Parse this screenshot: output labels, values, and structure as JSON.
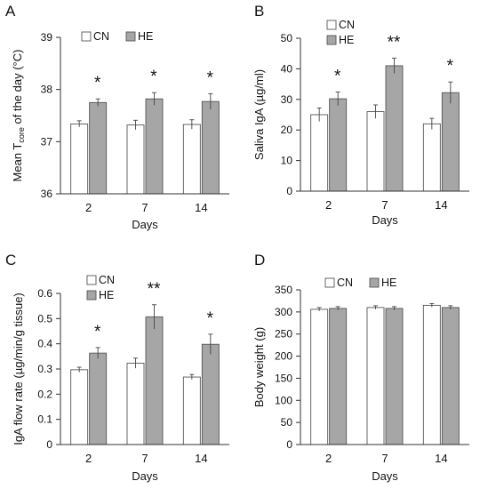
{
  "legend": [
    "CN",
    "HE"
  ],
  "colors": {
    "CN": "#ffffff",
    "HE": "#a6a6a6",
    "stroke": "#555555",
    "axis": "#333333"
  },
  "chart_data": [
    {
      "panel": "A",
      "type": "bar",
      "categories": [
        "2",
        "7",
        "14"
      ],
      "xlabel": "Days",
      "ylabel_parts": [
        "Mean T",
        "core",
        " of the day (°C)"
      ],
      "ylim": [
        36,
        39
      ],
      "yticks": [
        "36",
        "37",
        "38",
        "39"
      ],
      "series": [
        {
          "name": "CN",
          "values": [
            37.34,
            37.32,
            37.33
          ],
          "errors": [
            0.06,
            0.09,
            0.09
          ]
        },
        {
          "name": "HE",
          "values": [
            37.75,
            37.82,
            37.77
          ],
          "errors": [
            0.07,
            0.12,
            0.15
          ]
        }
      ],
      "significance": [
        "*",
        "*",
        "*"
      ]
    },
    {
      "panel": "B",
      "type": "bar",
      "categories": [
        "2",
        "7",
        "14"
      ],
      "xlabel": "Days",
      "ylabel": "Saliva IgA (µg/ml)",
      "ylim": [
        0,
        50
      ],
      "yticks": [
        "0",
        "10",
        "20",
        "30",
        "40",
        "50"
      ],
      "series": [
        {
          "name": "CN",
          "values": [
            25,
            26,
            22
          ],
          "errors": [
            2.2,
            2.2,
            1.8
          ]
        },
        {
          "name": "HE",
          "values": [
            30.2,
            41,
            32.2
          ],
          "errors": [
            2.2,
            2.5,
            3.5
          ]
        }
      ],
      "significance": [
        "*",
        "**",
        "*"
      ]
    },
    {
      "panel": "C",
      "type": "bar",
      "categories": [
        "2",
        "7",
        "14"
      ],
      "xlabel": "Days",
      "ylabel": "IgA flow rate (µg/min/g tissue)",
      "ylim": [
        0,
        0.6
      ],
      "yticks": [
        "0",
        "0.1",
        "0.2",
        "0.3",
        "0.4",
        "0.5",
        "0.6"
      ],
      "series": [
        {
          "name": "CN",
          "values": [
            0.297,
            0.323,
            0.268
          ],
          "errors": [
            0.01,
            0.02,
            0.01
          ]
        },
        {
          "name": "HE",
          "values": [
            0.363,
            0.507,
            0.398
          ],
          "errors": [
            0.022,
            0.048,
            0.04
          ]
        }
      ],
      "significance": [
        "*",
        "**",
        "*"
      ]
    },
    {
      "panel": "D",
      "type": "bar",
      "categories": [
        "2",
        "7",
        "14"
      ],
      "xlabel": "Days",
      "ylabel": "Body weight (g)",
      "ylim": [
        0,
        350
      ],
      "yticks": [
        "0",
        "50",
        "100",
        "150",
        "200",
        "250",
        "300",
        "350"
      ],
      "series": [
        {
          "name": "CN",
          "values": [
            306,
            310,
            315
          ],
          "errors": [
            4,
            4,
            4
          ]
        },
        {
          "name": "HE",
          "values": [
            308,
            308,
            310
          ],
          "errors": [
            4,
            4,
            4
          ]
        }
      ],
      "significance": [
        "",
        "",
        ""
      ]
    }
  ]
}
